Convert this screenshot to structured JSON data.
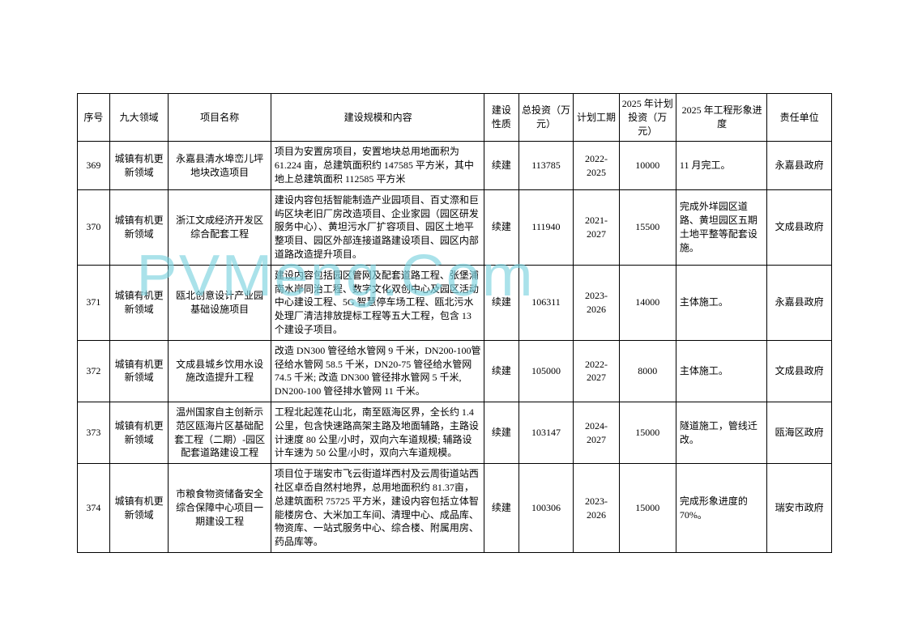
{
  "watermark": "PVMeng.Com",
  "headers": {
    "seq": "序号",
    "domain": "九大领域",
    "name": "项目名称",
    "content": "建设规模和内容",
    "nature": "建设性质",
    "invest": "总投资（万元）",
    "period": "计划工期",
    "plan": "2025 年计划投资（万元）",
    "progress": "2025 年工程形象进度",
    "unit": "责任单位"
  },
  "rows": [
    {
      "seq": "369",
      "domain": "城镇有机更新领域",
      "name": "永嘉县清水埠峦儿坪地块改造项目",
      "content": "项目为安置房项目，安置地块总用地面积为61.224 亩，总建筑面积约 147585 平方米，其中地上总建筑面积 112585 平方米",
      "nature": "续建",
      "invest": "113785",
      "period": "2022-2025",
      "plan": "10000",
      "progress": "11 月完工。",
      "unit": "永嘉县政府"
    },
    {
      "seq": "370",
      "domain": "城镇有机更新领域",
      "name": "浙江文成经济开发区综合配套工程",
      "content": "建设内容包括智能制造产业园项目、百丈漈和巨屿区块老旧厂房改造项目、企业家园（园区研发服务中心）、黄坦污水厂扩容项目、园区土地平整项目、园区外部连接道路建设项目、园区内部道路改造提升项目。",
      "nature": "续建",
      "invest": "111940",
      "period": "2021-2027",
      "plan": "15500",
      "progress": "完成外垟园区道路、黄坦园区五期土地平整等配套设施。",
      "unit": "文成县政府"
    },
    {
      "seq": "371",
      "domain": "城镇有机更新领域",
      "name": "瓯北创意设计产业园基础设施项目",
      "content": "建设内容包括园区管网及配套道路工程、张堡浦南水岸同治工程、数字文化双创中心及园区活动中心建设工程、5G 智慧停车场工程、瓯北污水处理厂清洁排放提标工程等五大工程，包含 13 个建设子项目。",
      "nature": "续建",
      "invest": "106311",
      "period": "2023-2026",
      "plan": "14000",
      "progress": "主体施工。",
      "unit": "永嘉县政府"
    },
    {
      "seq": "372",
      "domain": "城镇有机更新领域",
      "name": "文成县城乡饮用水设施改造提升工程",
      "content": "改造 DN300 管径给水管网 9 千米，DN200-100管径给水管网 58.5 千米，DN20-75 管径给水管网 74.5 千米; 改造 DN300 管径排水管网 5 千米, DN200-100 管径排水管网 11 千米。",
      "nature": "续建",
      "invest": "105000",
      "period": "2022-2027",
      "plan": "8000",
      "progress": "主体施工。",
      "unit": "文成县政府"
    },
    {
      "seq": "373",
      "domain": "城镇有机更新领域",
      "name": "温州国家自主创新示范区瓯海片区基础配套工程（二期）-园区配套道路建设工程",
      "content": "工程北起莲花山北，南至瓯海区界，全长约 1.4公里，包含快速路高架主路及地面辅路，主路设计速度 80 公里/小时，双向六车道规模; 辅路设计车速为 50 公里/小时，双向六车道规模。",
      "nature": "续建",
      "invest": "103147",
      "period": "2024-2027",
      "plan": "15000",
      "progress": "隧道施工，管线迁改。",
      "unit": "瓯海区政府"
    },
    {
      "seq": "374",
      "domain": "城镇有机更新领域",
      "name": "市粮食物资储备安全综合保障中心项目一期建设工程",
      "content": "项目位于瑞安市飞云街道垟西村及云周街道站西社区卓岙自然村地界，总用地面积约 81.37亩，总建筑面积 75725 平方米，建设内容包括立体智能楼房仓、大米加工车间、清理中心、成品库、物资库、一站式服务中心、综合楼、附属用房、药品库等。",
      "nature": "续建",
      "invest": "100306",
      "period": "2023-2026",
      "plan": "15000",
      "progress": "完成形象进度的70%。",
      "unit": "瑞安市政府"
    }
  ]
}
